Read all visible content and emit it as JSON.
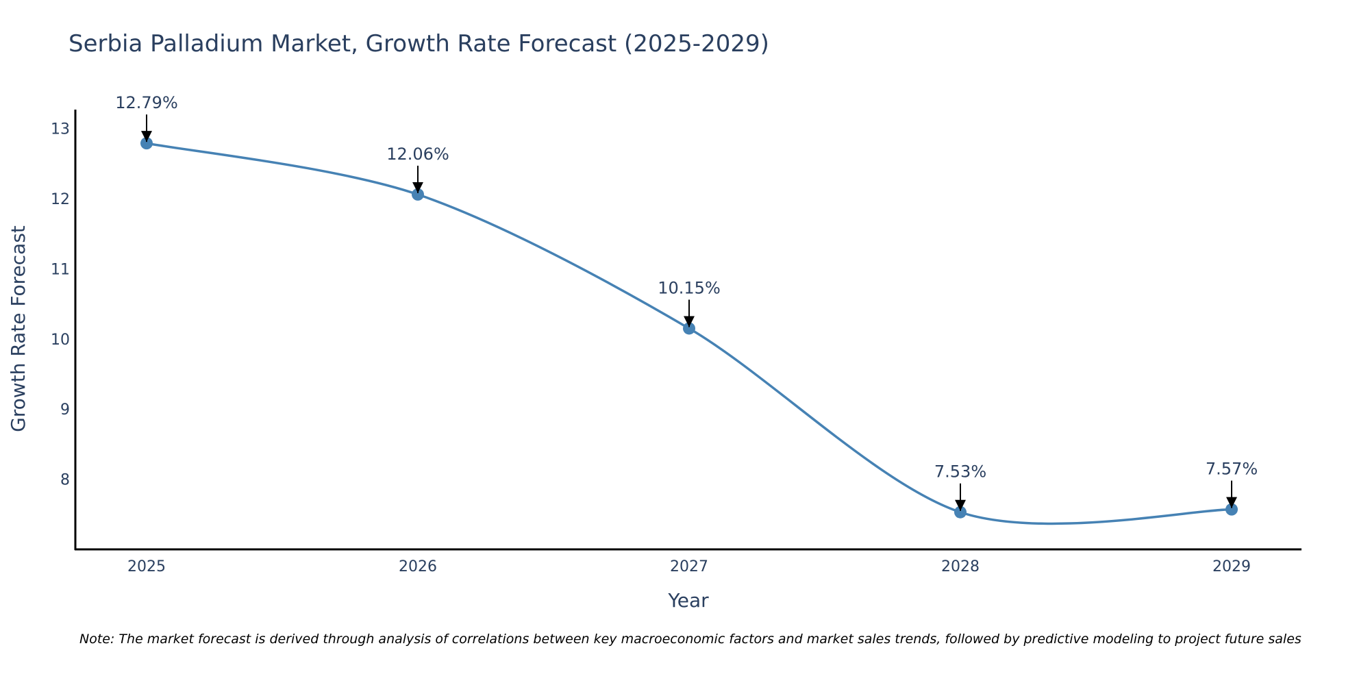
{
  "chart_data": {
    "type": "line",
    "title": "Serbia Palladium Market, Growth Rate Forecast (2025-2029)",
    "xlabel": "Year",
    "ylabel": "Growth Rate Forecast",
    "categories": [
      "2025",
      "2026",
      "2027",
      "2028",
      "2029"
    ],
    "values": [
      12.79,
      12.06,
      10.15,
      7.53,
      7.57
    ],
    "data_labels": [
      "12.79%",
      "12.06%",
      "10.15%",
      "7.53%",
      "7.57%"
    ],
    "y_ticks": [
      8,
      9,
      10,
      11,
      12,
      13
    ],
    "ylim": [
      7.0,
      13.27
    ],
    "grid": false,
    "line_shape": "spline",
    "series_color": "#4682b4",
    "note": "Note: The market forecast is derived through analysis of correlations between key macroeconomic factors and market sales trends, followed by predictive modeling to project future sales"
  }
}
